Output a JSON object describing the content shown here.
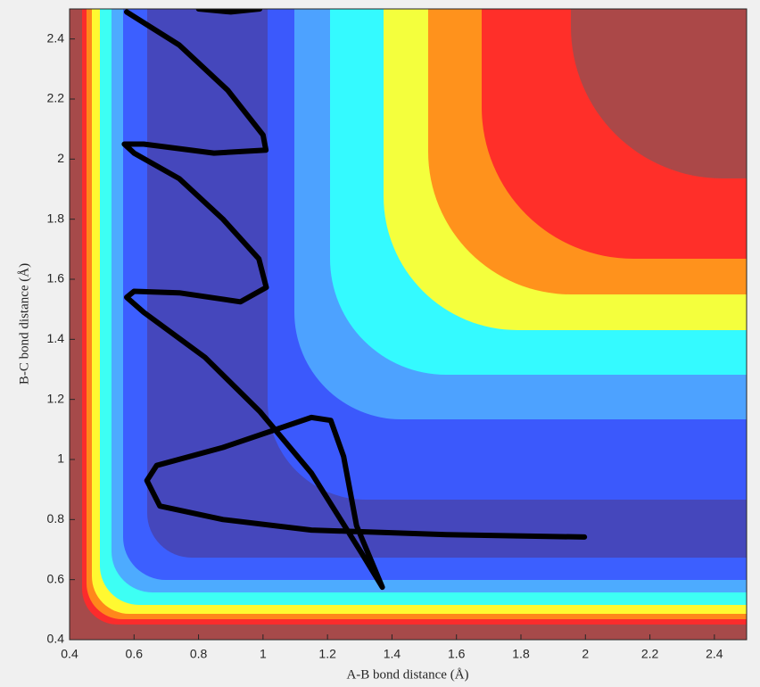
{
  "chart_data": {
    "type": "contour-trajectory",
    "xlabel": "A-B bond distance (Å)",
    "ylabel": "B-C bond distance (Å)",
    "xlim": [
      0.4,
      2.5
    ],
    "ylim": [
      0.4,
      2.5
    ],
    "xticks": [
      0.4,
      0.6,
      0.8,
      1,
      1.2,
      1.4,
      1.6,
      1.8,
      2,
      2.2,
      2.4
    ],
    "yticks": [
      0.4,
      0.6,
      0.8,
      1,
      1.2,
      1.4,
      1.6,
      1.8,
      2,
      2.2,
      2.4
    ],
    "series": [
      {
        "color": "#000000",
        "x": [
          1.997,
          1.57,
          1.15,
          0.876,
          0.68,
          0.64,
          0.67,
          0.876,
          1.15,
          1.21,
          1.25,
          1.29,
          1.37,
          1.305,
          1.15,
          0.99,
          0.82,
          0.63,
          0.577,
          0.6,
          0.74,
          0.93,
          1.01,
          0.987,
          0.876,
          0.74,
          0.6,
          0.57,
          0.63,
          0.848,
          1.009,
          1.0,
          0.89,
          0.74,
          0.577,
          null,
          0.8,
          0.9,
          0.99
        ],
        "y": [
          0.742,
          0.75,
          0.765,
          0.8,
          0.845,
          0.93,
          0.98,
          1.04,
          1.14,
          1.13,
          1.01,
          0.78,
          0.575,
          0.69,
          0.955,
          1.16,
          1.34,
          1.49,
          1.54,
          1.56,
          1.555,
          1.525,
          1.573,
          1.668,
          1.8,
          1.935,
          2.02,
          2.05,
          2.05,
          2.02,
          2.03,
          2.08,
          2.23,
          2.38,
          2.49,
          null,
          2.5,
          2.49,
          2.5
        ]
      }
    ]
  }
}
